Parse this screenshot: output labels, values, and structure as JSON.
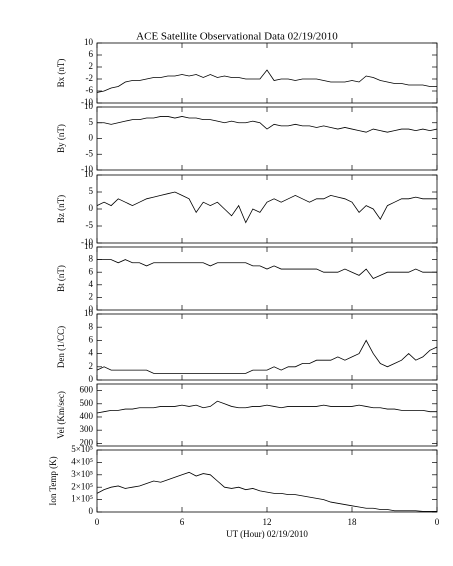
{
  "chart_data": [
    {
      "type": "line",
      "title": "ACE Satellite Observational Data   02/19/2010",
      "ylabel": "Bx (nT)",
      "color": "#000000",
      "x": [
        0,
        0.5,
        1,
        1.5,
        2,
        2.5,
        3,
        3.5,
        4,
        4.5,
        5,
        5.5,
        6,
        6.5,
        7,
        7.5,
        8,
        8.5,
        9,
        9.5,
        10,
        10.5,
        11,
        11.5,
        12,
        12.5,
        13,
        13.5,
        14,
        14.5,
        15,
        15.5,
        16,
        16.5,
        17,
        17.5,
        18,
        18.5,
        19,
        19.5,
        20,
        20.5,
        21,
        21.5,
        22,
        22.5,
        23,
        23.5,
        24
      ],
      "values": [
        -6.5,
        -6,
        -5,
        -4.5,
        -3,
        -2.5,
        -2.5,
        -2,
        -1.5,
        -1.5,
        -1,
        -1,
        -0.5,
        -1,
        -0.5,
        -1.5,
        -0.5,
        -1.5,
        -1,
        -1.5,
        -1.5,
        -2,
        -2,
        -2,
        1,
        -2.5,
        -2,
        -2,
        -2.5,
        -2,
        -2,
        -2,
        -2.5,
        -3,
        -3,
        -3,
        -2.5,
        -3,
        -1,
        -1.5,
        -2.5,
        -3,
        -3.5,
        -3.5,
        -4,
        -4,
        -4,
        -4.5,
        -4.5
      ],
      "xlim": [
        0,
        24
      ],
      "ylim": [
        -10,
        10
      ],
      "yticks": [
        -10,
        -6,
        -2,
        2,
        6,
        10
      ]
    },
    {
      "type": "line",
      "ylabel": "By (nT)",
      "color": "#000000",
      "x": [
        0,
        0.5,
        1,
        1.5,
        2,
        2.5,
        3,
        3.5,
        4,
        4.5,
        5,
        5.5,
        6,
        6.5,
        7,
        7.5,
        8,
        8.5,
        9,
        9.5,
        10,
        10.5,
        11,
        11.5,
        12,
        12.5,
        13,
        13.5,
        14,
        14.5,
        15,
        15.5,
        16,
        16.5,
        17,
        17.5,
        18,
        18.5,
        19,
        19.5,
        20,
        20.5,
        21,
        21.5,
        22,
        22.5,
        23,
        23.5,
        24
      ],
      "values": [
        5,
        5,
        4.5,
        5,
        5.5,
        6,
        6,
        6.5,
        6.5,
        7,
        7,
        6.5,
        7,
        6.5,
        6.5,
        6,
        6,
        5.5,
        5,
        5.5,
        5,
        5,
        5.5,
        5,
        3,
        4.5,
        4,
        4,
        4.5,
        4,
        4,
        3.5,
        4,
        3.5,
        3,
        3.5,
        3,
        2.5,
        2,
        3,
        2.5,
        2,
        2.5,
        3,
        3,
        2.5,
        3,
        2.5,
        3
      ],
      "xlim": [
        0,
        24
      ],
      "ylim": [
        -10,
        10
      ],
      "yticks": [
        -10,
        -5,
        0,
        5,
        10
      ]
    },
    {
      "type": "line",
      "ylabel": "Bz (nT)",
      "color": "#000000",
      "x": [
        0,
        0.5,
        1,
        1.5,
        2,
        2.5,
        3,
        3.5,
        4,
        4.5,
        5,
        5.5,
        6,
        6.5,
        7,
        7.5,
        8,
        8.5,
        9,
        9.5,
        10,
        10.5,
        11,
        11.5,
        12,
        12.5,
        13,
        13.5,
        14,
        14.5,
        15,
        15.5,
        16,
        16.5,
        17,
        17.5,
        18,
        18.5,
        19,
        19.5,
        20,
        20.5,
        21,
        21.5,
        22,
        22.5,
        23,
        23.5,
        24
      ],
      "values": [
        1,
        2,
        1,
        3,
        2,
        1,
        2,
        3,
        3.5,
        4,
        4.5,
        5,
        4,
        3,
        -1,
        2,
        1,
        2,
        0,
        -2,
        1,
        -4,
        0,
        -1,
        2,
        3,
        2,
        3,
        4,
        3,
        2,
        3,
        3,
        4,
        3.5,
        3,
        2,
        -1,
        1,
        0,
        -3,
        1,
        2,
        3,
        3,
        3.5,
        3,
        3,
        3
      ],
      "xlim": [
        0,
        24
      ],
      "ylim": [
        -10,
        10
      ],
      "yticks": [
        -10,
        -5,
        0,
        5,
        10
      ]
    },
    {
      "type": "line",
      "ylabel": "Bt (nT)",
      "color": "#000000",
      "x": [
        0,
        0.5,
        1,
        1.5,
        2,
        2.5,
        3,
        3.5,
        4,
        4.5,
        5,
        5.5,
        6,
        6.5,
        7,
        7.5,
        8,
        8.5,
        9,
        9.5,
        10,
        10.5,
        11,
        11.5,
        12,
        12.5,
        13,
        13.5,
        14,
        14.5,
        15,
        15.5,
        16,
        16.5,
        17,
        17.5,
        18,
        18.5,
        19,
        19.5,
        20,
        20.5,
        21,
        21.5,
        22,
        22.5,
        23,
        23.5,
        24
      ],
      "values": [
        8,
        8,
        8,
        7.5,
        8,
        7.5,
        7.5,
        7,
        7.5,
        7.5,
        7.5,
        7.5,
        7.5,
        7.5,
        7.5,
        7.5,
        7,
        7.5,
        7.5,
        7.5,
        7.5,
        7.5,
        7,
        7,
        6.5,
        7,
        6.5,
        6.5,
        6.5,
        6.5,
        6.5,
        6.5,
        6,
        6,
        6,
        6.5,
        6,
        5.5,
        6.5,
        5,
        5.5,
        6,
        6,
        6,
        6,
        6.5,
        6,
        6,
        6
      ],
      "xlim": [
        0,
        24
      ],
      "ylim": [
        0,
        10
      ],
      "yticks": [
        0,
        2,
        4,
        6,
        8,
        10
      ]
    },
    {
      "type": "line",
      "ylabel": "Den (1/CC)",
      "color": "#000000",
      "x": [
        0,
        0.5,
        1,
        1.5,
        2,
        2.5,
        3,
        3.5,
        4,
        4.5,
        5,
        5.5,
        6,
        6.5,
        7,
        7.5,
        8,
        8.5,
        9,
        9.5,
        10,
        10.5,
        11,
        11.5,
        12,
        12.5,
        13,
        13.5,
        14,
        14.5,
        15,
        15.5,
        16,
        16.5,
        17,
        17.5,
        18,
        18.5,
        19,
        19.5,
        20,
        20.5,
        21,
        21.5,
        22,
        22.5,
        23,
        23.5,
        24
      ],
      "values": [
        1.5,
        2,
        1.5,
        1.5,
        1.5,
        1.5,
        1.5,
        1.5,
        1,
        1,
        1,
        1,
        1,
        1,
        1,
        1,
        1,
        1,
        1,
        1,
        1,
        1,
        1.5,
        1.5,
        1.5,
        2,
        1.5,
        2,
        2,
        2.5,
        2.5,
        3,
        3,
        3,
        3.5,
        3,
        3.5,
        4,
        6,
        4,
        2.5,
        2,
        2.5,
        3,
        4,
        3,
        3.5,
        4.5,
        5
      ],
      "xlim": [
        0,
        24
      ],
      "ylim": [
        0,
        10
      ],
      "yticks": [
        0,
        2,
        4,
        6,
        8,
        10
      ]
    },
    {
      "type": "line",
      "ylabel": "Vel (Km/sec)",
      "color": "#000000",
      "x": [
        0,
        0.5,
        1,
        1.5,
        2,
        2.5,
        3,
        3.5,
        4,
        4.5,
        5,
        5.5,
        6,
        6.5,
        7,
        7.5,
        8,
        8.5,
        9,
        9.5,
        10,
        10.5,
        11,
        11.5,
        12,
        12.5,
        13,
        13.5,
        14,
        14.5,
        15,
        15.5,
        16,
        16.5,
        17,
        17.5,
        18,
        18.5,
        19,
        19.5,
        20,
        20.5,
        21,
        21.5,
        22,
        22.5,
        23,
        23.5,
        24
      ],
      "values": [
        430,
        440,
        450,
        450,
        460,
        460,
        470,
        470,
        470,
        480,
        480,
        480,
        490,
        480,
        490,
        470,
        480,
        520,
        500,
        480,
        470,
        470,
        480,
        480,
        490,
        480,
        470,
        480,
        480,
        480,
        480,
        480,
        490,
        480,
        480,
        480,
        480,
        490,
        480,
        470,
        470,
        460,
        460,
        450,
        450,
        450,
        450,
        440,
        440
      ],
      "xlim": [
        0,
        24
      ],
      "ylim": [
        180,
        650
      ],
      "yticks": [
        200,
        300,
        400,
        500,
        600
      ]
    },
    {
      "type": "line",
      "ylabel": "Ion Temp (K)",
      "xlabel": "UT (Hour)   02/19/2010",
      "color": "#000000",
      "x": [
        0,
        0.5,
        1,
        1.5,
        2,
        2.5,
        3,
        3.5,
        4,
        4.5,
        5,
        5.5,
        6,
        6.5,
        7,
        7.5,
        8,
        8.5,
        9,
        9.5,
        10,
        10.5,
        11,
        11.5,
        12,
        12.5,
        13,
        13.5,
        14,
        14.5,
        15,
        15.5,
        16,
        16.5,
        17,
        17.5,
        18,
        18.5,
        19,
        19.5,
        20,
        20.5,
        21,
        21.5,
        22,
        22.5,
        23,
        23.5,
        24
      ],
      "values": [
        150000,
        180000,
        200000,
        210000,
        190000,
        200000,
        210000,
        230000,
        250000,
        240000,
        260000,
        280000,
        300000,
        320000,
        290000,
        310000,
        300000,
        250000,
        200000,
        190000,
        200000,
        180000,
        190000,
        170000,
        160000,
        150000,
        150000,
        140000,
        140000,
        130000,
        120000,
        110000,
        100000,
        80000,
        70000,
        60000,
        50000,
        40000,
        30000,
        30000,
        20000,
        20000,
        10000,
        10000,
        10000,
        10000,
        5000,
        5000,
        5000
      ],
      "xlim": [
        0,
        24
      ],
      "ylim": [
        0,
        500000
      ],
      "yticks": [
        0,
        {
          "value": 100000,
          "label": "1×10⁵"
        },
        {
          "value": 200000,
          "label": "2×10⁵"
        },
        {
          "value": 300000,
          "label": "3×10⁵"
        },
        {
          "value": 400000,
          "label": "4×10⁵"
        },
        {
          "value": 500000,
          "label": "5×10⁵"
        }
      ],
      "xticks": [
        0,
        6,
        12,
        18,
        {
          "value": 24,
          "label": "0"
        }
      ]
    }
  ]
}
